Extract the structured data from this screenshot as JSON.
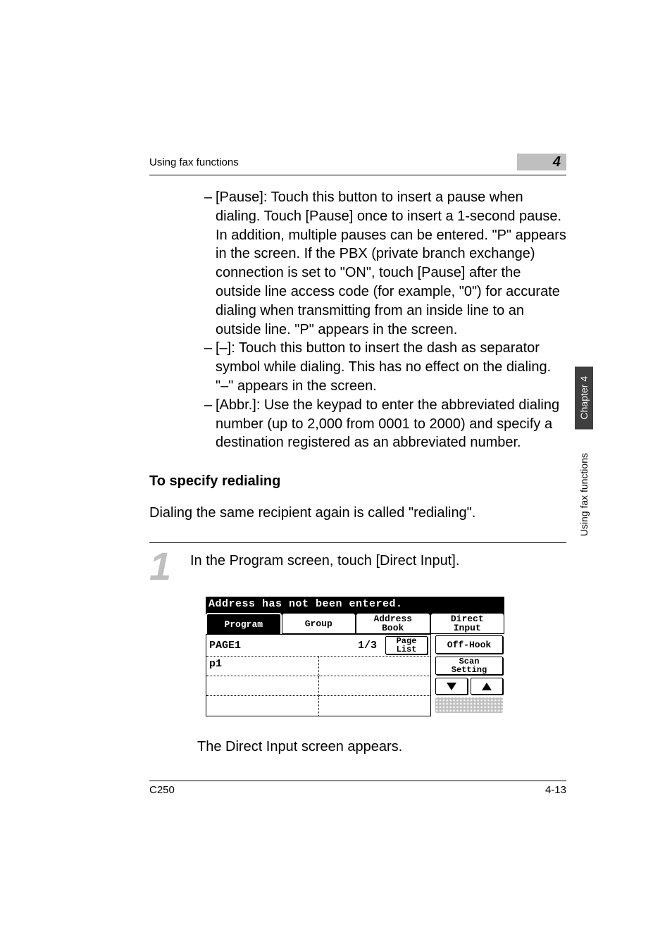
{
  "header": {
    "section_title": "Using fax functions",
    "chapter_number": "4"
  },
  "bullets": [
    "[Pause]: Touch this button to insert a pause when dialing. Touch [Pause] once to insert a 1-second pause. In addition, multiple pauses can be entered. \"P\" appears in the screen. If the PBX (private branch exchange) connection is set to \"ON\", touch [Pause] after the outside line access code (for example, \"0\") for accurate dialing when transmitting from an inside line to an outside line. \"P\" appears in the screen.",
    "[–]: Touch this button to insert the dash as separator symbol while dialing. This has no effect on the dialing. \"–\" appears in the screen.",
    "[Abbr.]: Use the keypad to enter the abbreviated dialing number (up to 2,000 from 0001 to 2000) and specify a destination registered as an abbreviated number."
  ],
  "subheading": "To specify redialing",
  "paragraph": "Dialing the same recipient again is called \"redialing\".",
  "step": {
    "number": "1",
    "text": "In the Program screen, touch [Direct Input].",
    "post_text": "The Direct Input screen appears."
  },
  "ui": {
    "status": "Address has not been entered.",
    "tabs": {
      "program": "Program",
      "group": "Group",
      "address_book_l1": "Address",
      "address_book_l2": "Book",
      "direct_l1": "Direct",
      "direct_l2": "Input"
    },
    "page_label": "PAGE1",
    "page_fraction": "1/3",
    "page_list_l1": "Page",
    "page_list_l2": "List",
    "cell_p1": "p1",
    "side": {
      "off_hook": "Off-Hook",
      "scan_l1": "Scan",
      "scan_l2": "Setting"
    }
  },
  "footer": {
    "left": "C250",
    "right": "4-13"
  },
  "side_tabs": {
    "chapter": "Chapter 4",
    "section": "Using fax functions"
  }
}
